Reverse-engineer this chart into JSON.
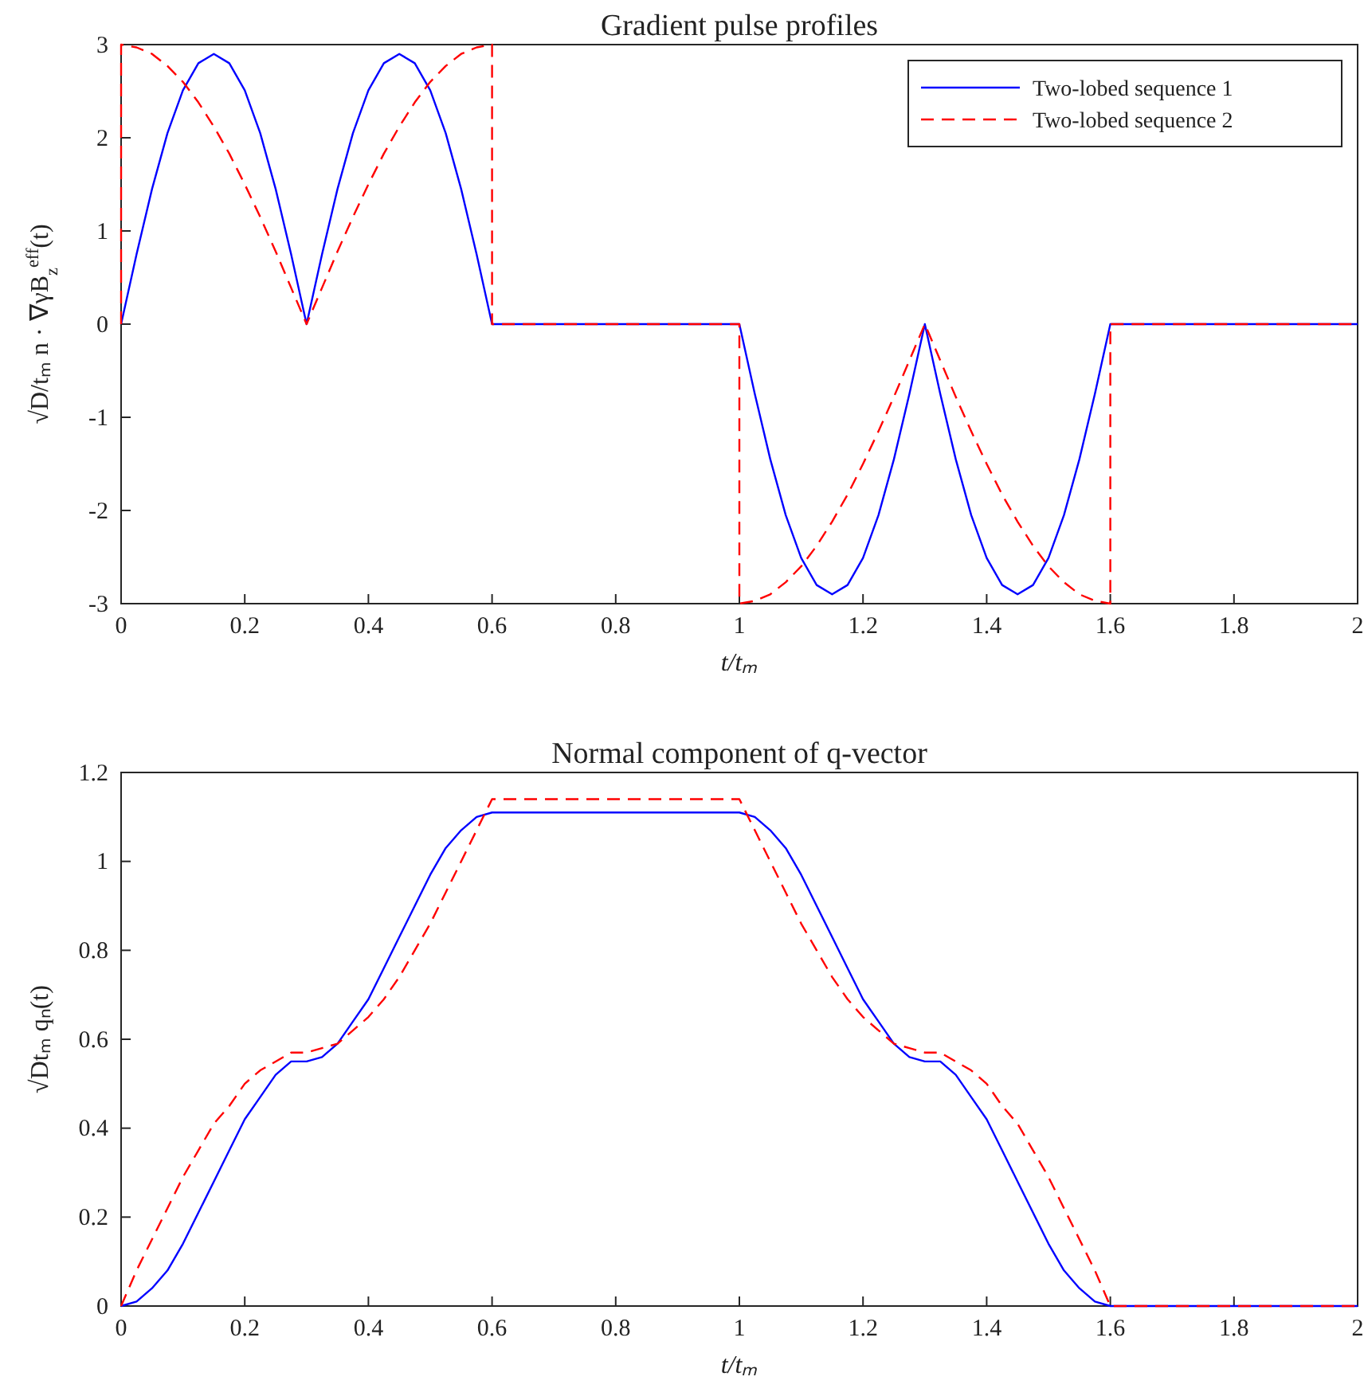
{
  "chart_data": [
    {
      "type": "line",
      "title": "Gradient pulse profiles",
      "xlabel": "t/tₘ",
      "ylabel": "√D/tₘ n · ∇γB$_{z}$$^{eff}$(t)",
      "xlim": [
        0,
        2
      ],
      "ylim": [
        -3,
        3
      ],
      "xticks": [
        0,
        0.2,
        0.4,
        0.6,
        0.8,
        1,
        1.2,
        1.4,
        1.6,
        1.8,
        2
      ],
      "yticks": [
        -3,
        -2,
        -1,
        0,
        1,
        2,
        3
      ],
      "legend": "top right",
      "grid": false,
      "series": [
        {
          "name": "Two-lobed sequence 1",
          "color": "#0000ff",
          "line_style": "solid",
          "x": [
            0,
            0.025,
            0.05,
            0.075,
            0.1,
            0.125,
            0.15,
            0.175,
            0.2,
            0.225,
            0.25,
            0.275,
            0.3,
            0.325,
            0.35,
            0.375,
            0.4,
            0.425,
            0.45,
            0.475,
            0.5,
            0.525,
            0.55,
            0.575,
            0.6,
            1,
            1.025,
            1.05,
            1.075,
            1.1,
            1.125,
            1.15,
            1.175,
            1.2,
            1.225,
            1.25,
            1.275,
            1.3,
            1.325,
            1.35,
            1.375,
            1.4,
            1.425,
            1.45,
            1.475,
            1.5,
            1.525,
            1.55,
            1.575,
            1.6,
            2
          ],
          "values": [
            0,
            0.75,
            1.45,
            2.05,
            2.51,
            2.8,
            2.9,
            2.8,
            2.51,
            2.05,
            1.45,
            0.75,
            0,
            0.75,
            1.45,
            2.05,
            2.51,
            2.8,
            2.9,
            2.8,
            2.51,
            2.05,
            1.45,
            0.75,
            0,
            0,
            -0.75,
            -1.45,
            -2.05,
            -2.51,
            -2.8,
            -2.9,
            -2.8,
            -2.51,
            -2.05,
            -1.45,
            -0.75,
            0,
            -0.75,
            -1.45,
            -2.05,
            -2.51,
            -2.8,
            -2.9,
            -2.8,
            -2.51,
            -2.05,
            -1.45,
            -0.75,
            0,
            0
          ]
        },
        {
          "name": "Two-lobed sequence 2",
          "color": "#ff0000",
          "line_style": "dashed",
          "x": [
            0,
            0,
            0.025,
            0.05,
            0.075,
            0.1,
            0.125,
            0.15,
            0.175,
            0.2,
            0.225,
            0.25,
            0.275,
            0.3,
            0.325,
            0.35,
            0.375,
            0.4,
            0.425,
            0.45,
            0.475,
            0.5,
            0.525,
            0.55,
            0.575,
            0.6,
            0.6,
            1,
            1,
            1.025,
            1.05,
            1.075,
            1.1,
            1.125,
            1.15,
            1.175,
            1.2,
            1.225,
            1.25,
            1.275,
            1.3,
            1.325,
            1.35,
            1.375,
            1.4,
            1.425,
            1.45,
            1.475,
            1.5,
            1.525,
            1.55,
            1.575,
            1.6,
            1.6,
            2
          ],
          "values": [
            0,
            3,
            2.97,
            2.9,
            2.77,
            2.6,
            2.38,
            2.12,
            1.83,
            1.5,
            1.15,
            0.78,
            0.39,
            0,
            0.39,
            0.78,
            1.15,
            1.5,
            1.83,
            2.12,
            2.38,
            2.6,
            2.77,
            2.9,
            2.97,
            3,
            0,
            0,
            -3,
            -2.97,
            -2.9,
            -2.77,
            -2.6,
            -2.38,
            -2.12,
            -1.83,
            -1.5,
            -1.15,
            -0.78,
            -0.39,
            0,
            -0.39,
            -0.78,
            -1.15,
            -1.5,
            -1.83,
            -2.12,
            -2.38,
            -2.6,
            -2.77,
            -2.9,
            -2.97,
            -3,
            0,
            0
          ]
        }
      ]
    },
    {
      "type": "line",
      "title": "Normal component of q-vector",
      "xlabel": "t/tₘ",
      "ylabel": "√Dtₘ qₙ(t)",
      "xlim": [
        0,
        2
      ],
      "ylim": [
        0,
        1.2
      ],
      "xticks": [
        0,
        0.2,
        0.4,
        0.6,
        0.8,
        1,
        1.2,
        1.4,
        1.6,
        1.8,
        2
      ],
      "yticks": [
        0,
        0.2,
        0.4,
        0.6,
        0.8,
        1,
        1.2
      ],
      "grid": false,
      "series": [
        {
          "color": "#0000ff",
          "line_style": "solid",
          "x": [
            0,
            0.025,
            0.05,
            0.075,
            0.1,
            0.125,
            0.15,
            0.175,
            0.2,
            0.225,
            0.25,
            0.275,
            0.3,
            0.325,
            0.35,
            0.375,
            0.4,
            0.425,
            0.45,
            0.475,
            0.5,
            0.525,
            0.55,
            0.575,
            0.6,
            1,
            1.025,
            1.05,
            1.075,
            1.1,
            1.125,
            1.15,
            1.175,
            1.2,
            1.225,
            1.25,
            1.275,
            1.3,
            1.325,
            1.35,
            1.375,
            1.4,
            1.425,
            1.45,
            1.475,
            1.5,
            1.525,
            1.55,
            1.575,
            1.6,
            2
          ],
          "values": [
            0,
            0.01,
            0.04,
            0.08,
            0.14,
            0.21,
            0.28,
            0.35,
            0.42,
            0.47,
            0.52,
            0.55,
            0.55,
            0.56,
            0.59,
            0.64,
            0.69,
            0.76,
            0.83,
            0.9,
            0.97,
            1.03,
            1.07,
            1.1,
            1.11,
            1.11,
            1.1,
            1.07,
            1.03,
            0.97,
            0.9,
            0.83,
            0.76,
            0.69,
            0.64,
            0.59,
            0.56,
            0.55,
            0.55,
            0.52,
            0.47,
            0.42,
            0.35,
            0.28,
            0.21,
            0.14,
            0.08,
            0.04,
            0.01,
            0,
            0
          ]
        },
        {
          "color": "#ff0000",
          "line_style": "dashed",
          "x": [
            0,
            0.025,
            0.05,
            0.075,
            0.1,
            0.125,
            0.15,
            0.175,
            0.2,
            0.225,
            0.25,
            0.275,
            0.3,
            0.325,
            0.35,
            0.375,
            0.4,
            0.425,
            0.45,
            0.475,
            0.5,
            0.525,
            0.55,
            0.575,
            0.6,
            1,
            1.025,
            1.05,
            1.075,
            1.1,
            1.125,
            1.15,
            1.175,
            1.2,
            1.225,
            1.25,
            1.275,
            1.3,
            1.325,
            1.35,
            1.375,
            1.4,
            1.425,
            1.45,
            1.475,
            1.5,
            1.525,
            1.55,
            1.575,
            1.6,
            2
          ],
          "values": [
            0,
            0.08,
            0.15,
            0.22,
            0.29,
            0.35,
            0.41,
            0.45,
            0.5,
            0.53,
            0.55,
            0.57,
            0.57,
            0.58,
            0.59,
            0.62,
            0.65,
            0.69,
            0.74,
            0.8,
            0.86,
            0.93,
            1,
            1.07,
            1.14,
            1.14,
            1.07,
            1,
            0.93,
            0.86,
            0.8,
            0.74,
            0.69,
            0.65,
            0.62,
            0.59,
            0.58,
            0.57,
            0.57,
            0.55,
            0.53,
            0.5,
            0.45,
            0.41,
            0.35,
            0.29,
            0.22,
            0.15,
            0.08,
            0,
            0
          ]
        }
      ]
    }
  ]
}
